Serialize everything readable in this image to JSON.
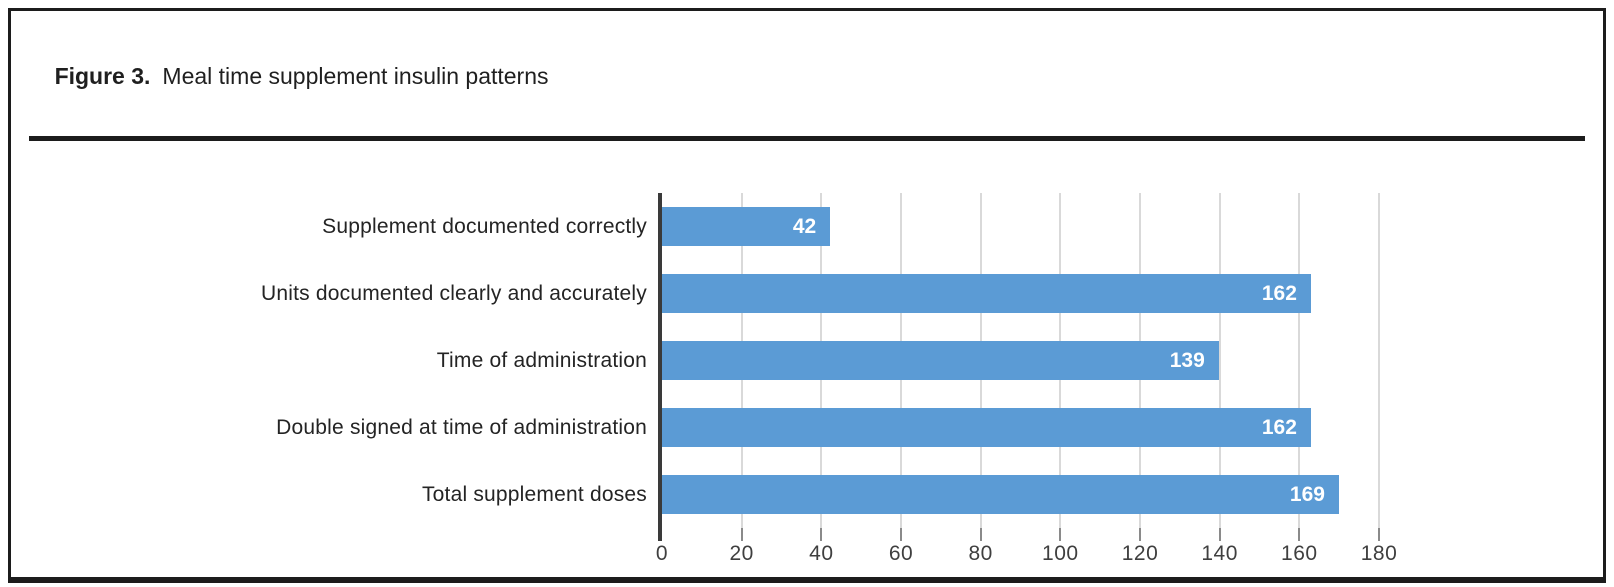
{
  "figure": {
    "label": "Figure 3.",
    "title": "Meal time supplement insulin patterns"
  },
  "chart_data": {
    "type": "bar",
    "orientation": "horizontal",
    "title": "Meal time supplement insulin patterns",
    "categories": [
      "Supplement documented correctly",
      "Units documented clearly and accurately",
      "Time of administration",
      "Double signed at time of administration",
      "Total supplement doses"
    ],
    "values": [
      42,
      162,
      139,
      162,
      169
    ],
    "xlabel": "",
    "ylabel": "",
    "xlim": [
      0,
      180
    ],
    "xticks": [
      0,
      20,
      40,
      60,
      80,
      100,
      120,
      140,
      160,
      180
    ],
    "grid": true,
    "legend": false,
    "colors": {
      "bar": "#5B9BD5",
      "value_label": "#FFFFFF",
      "gridline": "#D9D9D9",
      "axis_line": "#3A3A3A",
      "tick_mark": "#8A8A8A",
      "tick_label": "#3F3F3F",
      "category_label": "#242424",
      "frame_border": "#1C1C1C"
    }
  }
}
